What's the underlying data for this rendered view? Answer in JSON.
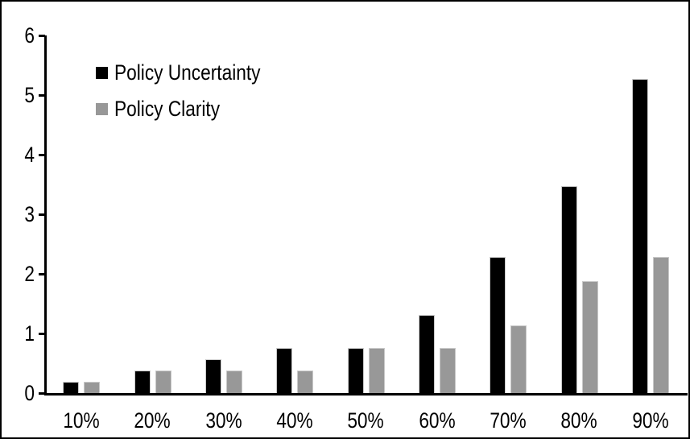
{
  "chart_data": {
    "type": "bar",
    "title": "",
    "xlabel": "",
    "ylabel": "",
    "categories": [
      "10%",
      "20%",
      "30%",
      "40%",
      "50%",
      "60%",
      "70%",
      "80%",
      "90%"
    ],
    "series": [
      {
        "name": "Policy Uncertainty",
        "color": "#000000",
        "values": [
          0.19,
          0.38,
          0.57,
          0.76,
          0.76,
          1.31,
          2.29,
          3.47,
          5.27
        ]
      },
      {
        "name": "Policy Clarity",
        "color": "#989898",
        "values": [
          0.19,
          0.38,
          0.38,
          0.38,
          0.76,
          0.76,
          1.14,
          1.88,
          2.28
        ]
      }
    ],
    "ylim": [
      0,
      6
    ],
    "yticks": [
      0,
      1,
      2,
      3,
      4,
      5,
      6
    ],
    "grid": false,
    "legend_position": "top-left",
    "axis_color": "#000000",
    "background_color": "#ffffff",
    "border_color": "#000000"
  }
}
